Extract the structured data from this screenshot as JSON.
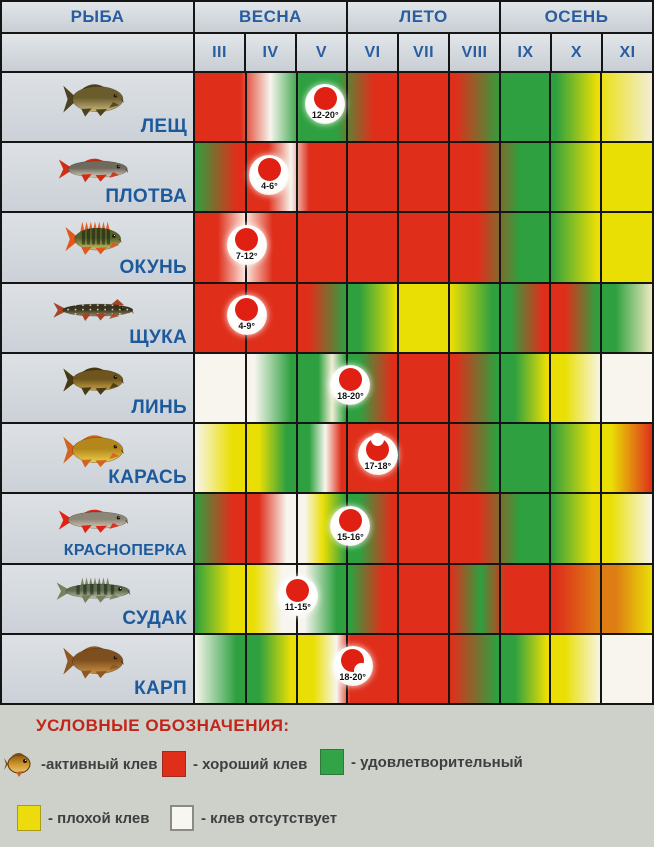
{
  "palette": {
    "R": "#df2f1b",
    "G": "#2ea03f",
    "Y": "#eadf05",
    "W": "#f7f5ee",
    "O": "#dd7d14",
    "LW": "#f2eed6",
    "LY": "#efe9c2"
  },
  "header": {
    "fish_col": "РЫБА",
    "seasons": [
      {
        "label": "ВЕСНА",
        "months": [
          "III",
          "IV",
          "V"
        ]
      },
      {
        "label": "ЛЕТО",
        "months": [
          "VI",
          "VII",
          "VIII"
        ]
      },
      {
        "label": "ОСЕНЬ",
        "months": [
          "IX",
          "X",
          "XI"
        ]
      }
    ]
  },
  "months": [
    "III",
    "IV",
    "V",
    "VI",
    "VII",
    "VIII",
    "IX",
    "X",
    "XI"
  ],
  "rows": [
    {
      "id": "lesch",
      "name": "ЛЕЩ",
      "fish_icon": "bream-fish-icon",
      "gradient": [
        [
          0,
          "R"
        ],
        [
          10,
          "R"
        ],
        [
          16.5,
          "W"
        ],
        [
          23,
          "G"
        ],
        [
          31,
          "G"
        ],
        [
          39,
          "R"
        ],
        [
          57,
          "R"
        ],
        [
          67,
          "G"
        ],
        [
          79,
          "G"
        ],
        [
          88,
          "Y"
        ],
        [
          100,
          "LW"
        ]
      ],
      "marker": {
        "label": "12-20°",
        "left_pct": 28.5,
        "variant": "dot"
      },
      "fish": {
        "shape": "deep",
        "back": "#6b5c2e",
        "belly": "#cbb97e",
        "fin": "#4e421e"
      }
    },
    {
      "id": "plotva",
      "name": "ПЛОТВА",
      "fish_icon": "roach-fish-icon",
      "gradient": [
        [
          0,
          "G"
        ],
        [
          9,
          "R"
        ],
        [
          16,
          "R"
        ],
        [
          21,
          "W"
        ],
        [
          25,
          "R"
        ],
        [
          62,
          "R"
        ],
        [
          71,
          "G"
        ],
        [
          78,
          "G"
        ],
        [
          88,
          "Y"
        ],
        [
          100,
          "Y"
        ]
      ],
      "marker": {
        "label": "4-6°",
        "left_pct": 16.3,
        "variant": "dot"
      },
      "fish": {
        "shape": "slender",
        "back": "#6f6a5e",
        "belly": "#d9d2bf",
        "fin": "#d22d12"
      }
    },
    {
      "id": "okun",
      "name": "ОКУНЬ",
      "fish_icon": "perch-fish-icon",
      "gradient": [
        [
          0,
          "R"
        ],
        [
          5,
          "R"
        ],
        [
          11,
          "#fbe9df"
        ],
        [
          17,
          "R"
        ],
        [
          62,
          "R"
        ],
        [
          71,
          "G"
        ],
        [
          78,
          "G"
        ],
        [
          88,
          "Y"
        ],
        [
          100,
          "Y"
        ]
      ],
      "marker": {
        "label": "7-12°",
        "left_pct": 11.3,
        "variant": "dot"
      },
      "fish": {
        "shape": "perch",
        "back": "#56622c",
        "belly": "#cfc468",
        "fin": "#e2581a",
        "stripes": 6
      }
    },
    {
      "id": "schuka",
      "name": "ЩУКА",
      "fish_icon": "pike-fish-icon",
      "gradient": [
        [
          0,
          "R"
        ],
        [
          25,
          "R"
        ],
        [
          33,
          "G"
        ],
        [
          36,
          "G"
        ],
        [
          44,
          "Y"
        ],
        [
          56,
          "Y"
        ],
        [
          65,
          "G"
        ],
        [
          69,
          "G"
        ],
        [
          76,
          "R"
        ],
        [
          81,
          "R"
        ],
        [
          88,
          "G"
        ],
        [
          92,
          "G"
        ],
        [
          100,
          "LY"
        ]
      ],
      "marker": {
        "label": "4-9°",
        "left_pct": 11.3,
        "variant": "dot"
      },
      "fish": {
        "shape": "pike",
        "back": "#37331e",
        "belly": "#8f8a60",
        "fin": "#a64526",
        "spots": true
      }
    },
    {
      "id": "lin",
      "name": "ЛИНЬ",
      "fish_icon": "tench-fish-icon",
      "gradient": [
        [
          0,
          "W"
        ],
        [
          13,
          "W"
        ],
        [
          21,
          "G"
        ],
        [
          27,
          "G"
        ],
        [
          30,
          "LW"
        ],
        [
          33,
          "G"
        ],
        [
          36,
          "G"
        ],
        [
          43,
          "R"
        ],
        [
          57,
          "R"
        ],
        [
          66,
          "G"
        ],
        [
          70,
          "G"
        ],
        [
          77,
          "Y"
        ],
        [
          81,
          "Y"
        ],
        [
          89,
          "W"
        ],
        [
          100,
          "W"
        ]
      ],
      "marker": {
        "label": "18-20°",
        "left_pct": 34,
        "variant": "dot"
      },
      "fish": {
        "shape": "tench",
        "back": "#6e551d",
        "belly": "#c9a344",
        "fin": "#473a12"
      }
    },
    {
      "id": "karas",
      "name": "КАРАСЬ",
      "fish_icon": "crucian-fish-icon",
      "gradient": [
        [
          0,
          "W"
        ],
        [
          8,
          "Y"
        ],
        [
          14,
          "Y"
        ],
        [
          20,
          "G"
        ],
        [
          25,
          "G"
        ],
        [
          28.5,
          "W"
        ],
        [
          32,
          "R"
        ],
        [
          57,
          "R"
        ],
        [
          66,
          "G"
        ],
        [
          78,
          "G"
        ],
        [
          87,
          "Y"
        ],
        [
          91,
          "Y"
        ],
        [
          100,
          "R"
        ]
      ],
      "marker": {
        "label": "17-18°",
        "left_pct": 40,
        "variant": "notch-top"
      },
      "fish": {
        "shape": "deep",
        "back": "#b3871c",
        "belly": "#ecd04a",
        "fin": "#d2641f"
      }
    },
    {
      "id": "krasnoperka",
      "name": "КРАСНОПЕРКА",
      "fish_icon": "rudd-fish-icon",
      "gradient": [
        [
          0,
          "G"
        ],
        [
          8,
          "R"
        ],
        [
          14,
          "R"
        ],
        [
          20,
          "W"
        ],
        [
          24,
          "W"
        ],
        [
          28,
          "Y"
        ],
        [
          33,
          "G"
        ],
        [
          36,
          "G"
        ],
        [
          43,
          "R"
        ],
        [
          62,
          "R"
        ],
        [
          71,
          "G"
        ],
        [
          78,
          "G"
        ],
        [
          87,
          "Y"
        ],
        [
          91,
          "Y"
        ],
        [
          100,
          "W"
        ]
      ],
      "marker": {
        "label": "15-16°",
        "left_pct": 34,
        "variant": "dot"
      },
      "fish": {
        "shape": "slender",
        "back": "#8d8677",
        "belly": "#d5cdb9",
        "fin": "#e22314"
      }
    },
    {
      "id": "sudak",
      "name": "СУДАК",
      "fish_icon": "zander-fish-icon",
      "gradient": [
        [
          0,
          "G"
        ],
        [
          8,
          "Y"
        ],
        [
          13,
          "Y"
        ],
        [
          19,
          "W"
        ],
        [
          24,
          "W"
        ],
        [
          31,
          "G"
        ],
        [
          34,
          "G"
        ],
        [
          41,
          "R"
        ],
        [
          56,
          "R"
        ],
        [
          62.5,
          "G"
        ],
        [
          68,
          "R"
        ],
        [
          79,
          "R"
        ],
        [
          88,
          "O"
        ],
        [
          92,
          "O"
        ],
        [
          100,
          "Y"
        ]
      ],
      "marker": {
        "label": "11-15°",
        "left_pct": 22.5,
        "variant": "dot"
      },
      "fish": {
        "shape": "zander",
        "back": "#5d6b50",
        "belly": "#bfc3a8",
        "fin": "#77815f",
        "stripes": 6
      }
    },
    {
      "id": "karp",
      "name": "КАРП",
      "fish_icon": "carp-fish-icon",
      "gradient": [
        [
          0,
          "W"
        ],
        [
          9,
          "G"
        ],
        [
          14,
          "G"
        ],
        [
          21,
          "Y"
        ],
        [
          26,
          "Y"
        ],
        [
          31,
          "W"
        ],
        [
          34,
          "R"
        ],
        [
          56,
          "R"
        ],
        [
          66,
          "G"
        ],
        [
          70,
          "G"
        ],
        [
          77,
          "Y"
        ],
        [
          81,
          "Y"
        ],
        [
          89,
          "W"
        ],
        [
          100,
          "W"
        ]
      ],
      "marker": {
        "label": "18-20°",
        "left_pct": 34.5,
        "variant": "notch-bottom"
      },
      "fish": {
        "shape": "deep",
        "back": "#7d4e1e",
        "belly": "#c98f45",
        "fin": "#8f5722"
      }
    }
  ],
  "legend": {
    "title": "УСЛОВНЫЕ ОБОЗНАЧЕНИЯ:",
    "items": [
      {
        "icon": "active-bite-fish-icon",
        "label": "-активный клев"
      },
      {
        "swatch_color": "#df2f1b",
        "label": "- хороший клев"
      },
      {
        "swatch_color": "#33a348",
        "label": "- удовлетворительный"
      },
      {
        "swatch_color": "#ecdc0e",
        "label": "- плохой клев"
      },
      {
        "swatch_color": "#f8f6f0",
        "label": "- клев отсутствует"
      }
    ]
  },
  "chart_data": {
    "type": "heatmap",
    "title": "Календарь клева рыбы",
    "x_categories": [
      "III",
      "IV",
      "V",
      "VI",
      "VII",
      "VIII",
      "IX",
      "X",
      "XI"
    ],
    "x_groups": [
      {
        "label": "ВЕСНА",
        "months": [
          "III",
          "IV",
          "V"
        ]
      },
      {
        "label": "ЛЕТО",
        "months": [
          "VI",
          "VII",
          "VIII"
        ]
      },
      {
        "label": "ОСЕНЬ",
        "months": [
          "IX",
          "X",
          "XI"
        ]
      }
    ],
    "y_categories": [
      "ЛЕЩ",
      "ПЛОТВА",
      "ОКУНЬ",
      "ЩУКА",
      "ЛИНЬ",
      "КАРАСЬ",
      "КРАСНОПЕРКА",
      "СУДАК",
      "КАРП"
    ],
    "scale": {
      "good": "хороший клев (red)",
      "satisfactory": "удовлетворительный (green)",
      "bad": "плохой клев (yellow)",
      "none": "клев отсутствует (white)",
      "active": "активный клев (fish icon)"
    },
    "cells": {
      "ЛЕЩ": [
        "good",
        "good→none→satisfactory",
        "satisfactory",
        "good",
        "good",
        "good→satisfactory",
        "satisfactory",
        "satisfactory→bad",
        "bad→none"
      ],
      "ПЛОТВА": [
        "satisfactory→good",
        "good",
        "good",
        "good",
        "good",
        "good",
        "good→satisfactory",
        "satisfactory→bad",
        "bad"
      ],
      "ОКУНЬ": [
        "good",
        "good",
        "good",
        "good",
        "good",
        "good",
        "good→satisfactory",
        "satisfactory→bad",
        "bad"
      ],
      "ЩУКА": [
        "good",
        "good",
        "good→satisfactory",
        "satisfactory→bad",
        "bad",
        "bad→satisfactory",
        "satisfactory→good",
        "good→satisfactory",
        "satisfactory→bad"
      ],
      "ЛИНЬ": [
        "none",
        "none→satisfactory",
        "satisfactory",
        "satisfactory→good",
        "good",
        "good→satisfactory",
        "satisfactory→bad",
        "bad→none",
        "none"
      ],
      "КАРАСЬ": [
        "none→bad",
        "bad→satisfactory",
        "satisfactory→good",
        "good",
        "good",
        "good→satisfactory",
        "satisfactory",
        "satisfactory→bad",
        "bad→good"
      ],
      "КРАСНОПЕРКА": [
        "satisfactory→good",
        "good→none",
        "none→bad→satisfactory",
        "satisfactory→good",
        "good",
        "good",
        "good→satisfactory",
        "satisfactory→bad",
        "bad→none"
      ],
      "СУДАК": [
        "satisfactory→bad",
        "bad→none",
        "none→satisfactory",
        "satisfactory→good",
        "good",
        "good→satisfactory→good",
        "good",
        "good→bad",
        "bad"
      ],
      "КАРП": [
        "none→satisfactory",
        "satisfactory→bad",
        "bad→none",
        "good",
        "good",
        "good→satisfactory",
        "satisfactory→bad",
        "bad→none",
        "none"
      ]
    },
    "temperature_markers": [
      {
        "fish": "ЛЕЩ",
        "month": "V",
        "temp": "12-20°"
      },
      {
        "fish": "ПЛОТВА",
        "month": "IV",
        "temp": "4-6°"
      },
      {
        "fish": "ОКУНЬ",
        "month": "III-IV",
        "temp": "7-12°"
      },
      {
        "fish": "ЩУКА",
        "month": "III-IV",
        "temp": "4-9°"
      },
      {
        "fish": "ЛИНЬ",
        "month": "V-VI",
        "temp": "18-20°"
      },
      {
        "fish": "КАРАСЬ",
        "month": "VI",
        "temp": "17-18°"
      },
      {
        "fish": "КРАСНОПЕРКА",
        "month": "V-VI",
        "temp": "15-16°"
      },
      {
        "fish": "СУДАК",
        "month": "IV-V",
        "temp": "11-15°"
      },
      {
        "fish": "КАРП",
        "month": "V-VI",
        "temp": "18-20°"
      }
    ]
  }
}
